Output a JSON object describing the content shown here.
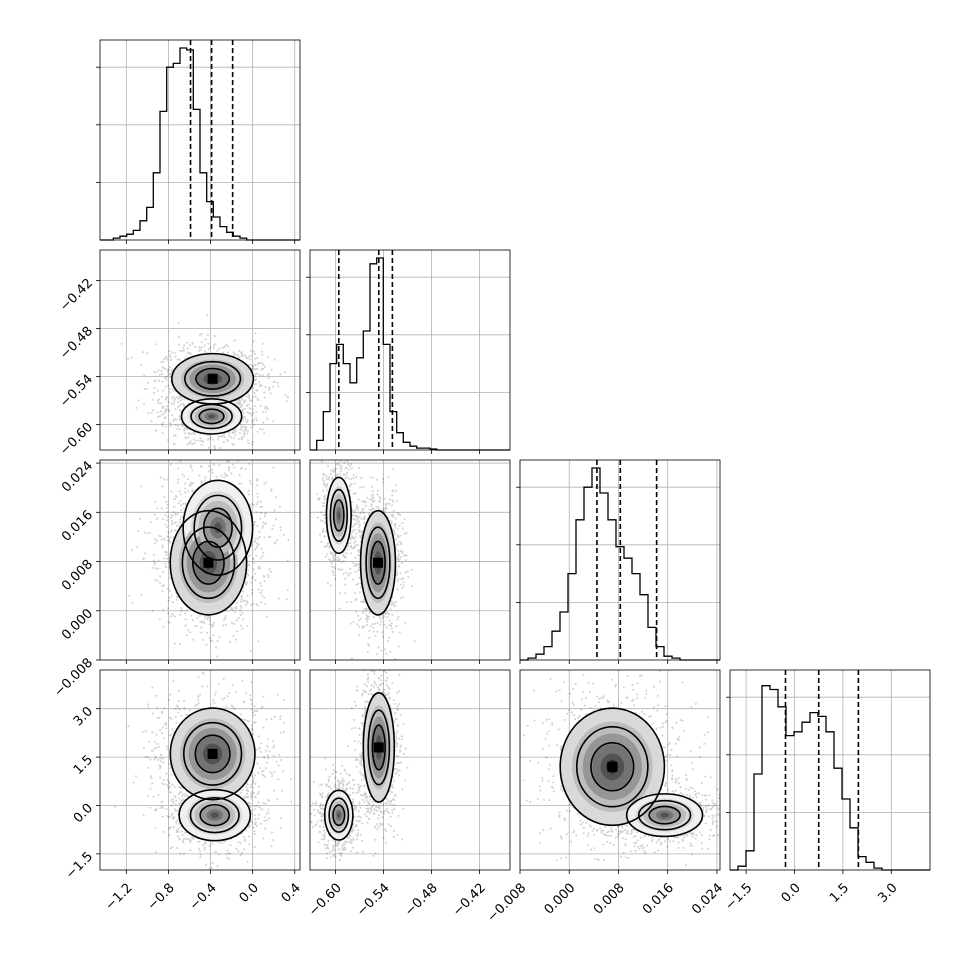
{
  "chart_data": {
    "type": "corner",
    "parameters": [
      {
        "range": [
          -1.45,
          0.45
        ],
        "ticks": [
          -1.2,
          -0.8,
          -0.4,
          0.0,
          0.4
        ],
        "tick_labels": [
          "−1.2",
          "−0.8",
          "−0.4",
          "0.0",
          "0.4"
        ],
        "quantiles": [
          -0.59,
          -0.39,
          -0.19
        ],
        "histogram": {
          "bins": 30,
          "counts": [
            0,
            0,
            0.01,
            0.02,
            0.03,
            0.05,
            0.1,
            0.17,
            0.35,
            0.67,
            0.9,
            0.92,
            1.0,
            0.99,
            0.68,
            0.35,
            0.2,
            0.12,
            0.07,
            0.04,
            0.02,
            0.01,
            0.0,
            0,
            0,
            0,
            0,
            0,
            0,
            0
          ]
        }
      },
      {
        "range": [
          -0.632,
          -0.382
        ],
        "ticks": [
          -0.6,
          -0.54,
          -0.48,
          -0.42
        ],
        "tick_labels": [
          "−0.60",
          "−0.54",
          "−0.48",
          "−0.42"
        ],
        "quantiles": [
          -0.596,
          -0.546,
          -0.529
        ],
        "histogram": {
          "bins": 30,
          "counts": [
            0,
            0.05,
            0.2,
            0.45,
            0.55,
            0.45,
            0.35,
            0.48,
            0.62,
            0.97,
            1.0,
            0.55,
            0.2,
            0.09,
            0.04,
            0.02,
            0.01,
            0.01,
            0.005,
            0,
            0,
            0,
            0,
            0,
            0,
            0,
            0,
            0,
            0,
            0
          ]
        }
      },
      {
        "range": [
          -0.008,
          0.0245
        ],
        "ticks": [
          -0.008,
          0.0,
          0.008,
          0.016,
          0.024
        ],
        "tick_labels": [
          "−0.008",
          "0.000",
          "0.008",
          "0.016",
          "0.024"
        ],
        "y_ticks": [
          0.024,
          0.016,
          0.008,
          0.0,
          -0.008
        ],
        "quantiles": [
          0.0045,
          0.0083,
          0.0142
        ],
        "histogram": {
          "bins": 25,
          "counts": [
            0,
            0.01,
            0.03,
            0.07,
            0.15,
            0.25,
            0.45,
            0.73,
            0.9,
            1.0,
            0.87,
            0.73,
            0.59,
            0.53,
            0.45,
            0.34,
            0.17,
            0.07,
            0.02,
            0.01,
            0,
            0,
            0,
            0,
            0
          ]
        }
      },
      {
        "range": [
          -2.0,
          4.2
        ],
        "ticks": [
          -1.5,
          0.0,
          1.5,
          3.0
        ],
        "tick_labels": [
          "−1.5",
          "0.0",
          "1.5",
          "3.0"
        ],
        "quantiles": [
          -0.28,
          0.75,
          1.98
        ],
        "histogram": {
          "bins": 25,
          "counts": [
            0,
            0.02,
            0.1,
            0.5,
            0.96,
            0.94,
            0.85,
            0.7,
            0.72,
            0.77,
            0.82,
            0.8,
            0.72,
            0.53,
            0.37,
            0.22,
            0.07,
            0.04,
            0.01,
            0,
            0,
            0,
            0,
            0,
            0
          ]
        }
      }
    ],
    "pairs": [
      {
        "x": 0,
        "y": 1,
        "modes": [
          {
            "mx": -0.38,
            "my": -0.543,
            "sx": 0.16,
            "sy": 0.013,
            "w": 0.6
          },
          {
            "mx": -0.39,
            "my": -0.59,
            "sx": 0.13,
            "sy": 0.01,
            "w": 0.4
          }
        ]
      },
      {
        "x": 0,
        "y": 2,
        "modes": [
          {
            "mx": -0.42,
            "my": 0.0078,
            "sx": 0.15,
            "sy": 0.0035,
            "w": 0.6
          },
          {
            "mx": -0.33,
            "my": 0.0135,
            "sx": 0.15,
            "sy": 0.0035,
            "w": 0.4
          }
        ]
      },
      {
        "x": 0,
        "y": 3,
        "modes": [
          {
            "mx": -0.38,
            "my": 1.6,
            "sx": 0.17,
            "sy": 0.6,
            "w": 0.55
          },
          {
            "mx": -0.36,
            "my": -0.3,
            "sx": 0.15,
            "sy": 0.35,
            "w": 0.45
          }
        ]
      },
      {
        "x": 1,
        "y": 2,
        "modes": [
          {
            "mx": -0.547,
            "my": 0.0078,
            "sx": 0.009,
            "sy": 0.0035,
            "w": 0.6
          },
          {
            "mx": -0.596,
            "my": 0.0155,
            "sx": 0.007,
            "sy": 0.0028,
            "w": 0.4
          }
        ]
      },
      {
        "x": 1,
        "y": 3,
        "modes": [
          {
            "mx": -0.546,
            "my": 1.8,
            "sx": 0.008,
            "sy": 0.7,
            "w": 0.6
          },
          {
            "mx": -0.596,
            "my": -0.3,
            "sx": 0.008,
            "sy": 0.35,
            "w": 0.4
          }
        ]
      },
      {
        "x": 2,
        "y": 3,
        "modes": [
          {
            "mx": 0.007,
            "my": 1.2,
            "sx": 0.0035,
            "sy": 0.75,
            "w": 0.6
          },
          {
            "mx": 0.0155,
            "my": -0.3,
            "sx": 0.0028,
            "sy": 0.3,
            "w": 0.4
          }
        ]
      }
    ],
    "grid": true
  }
}
